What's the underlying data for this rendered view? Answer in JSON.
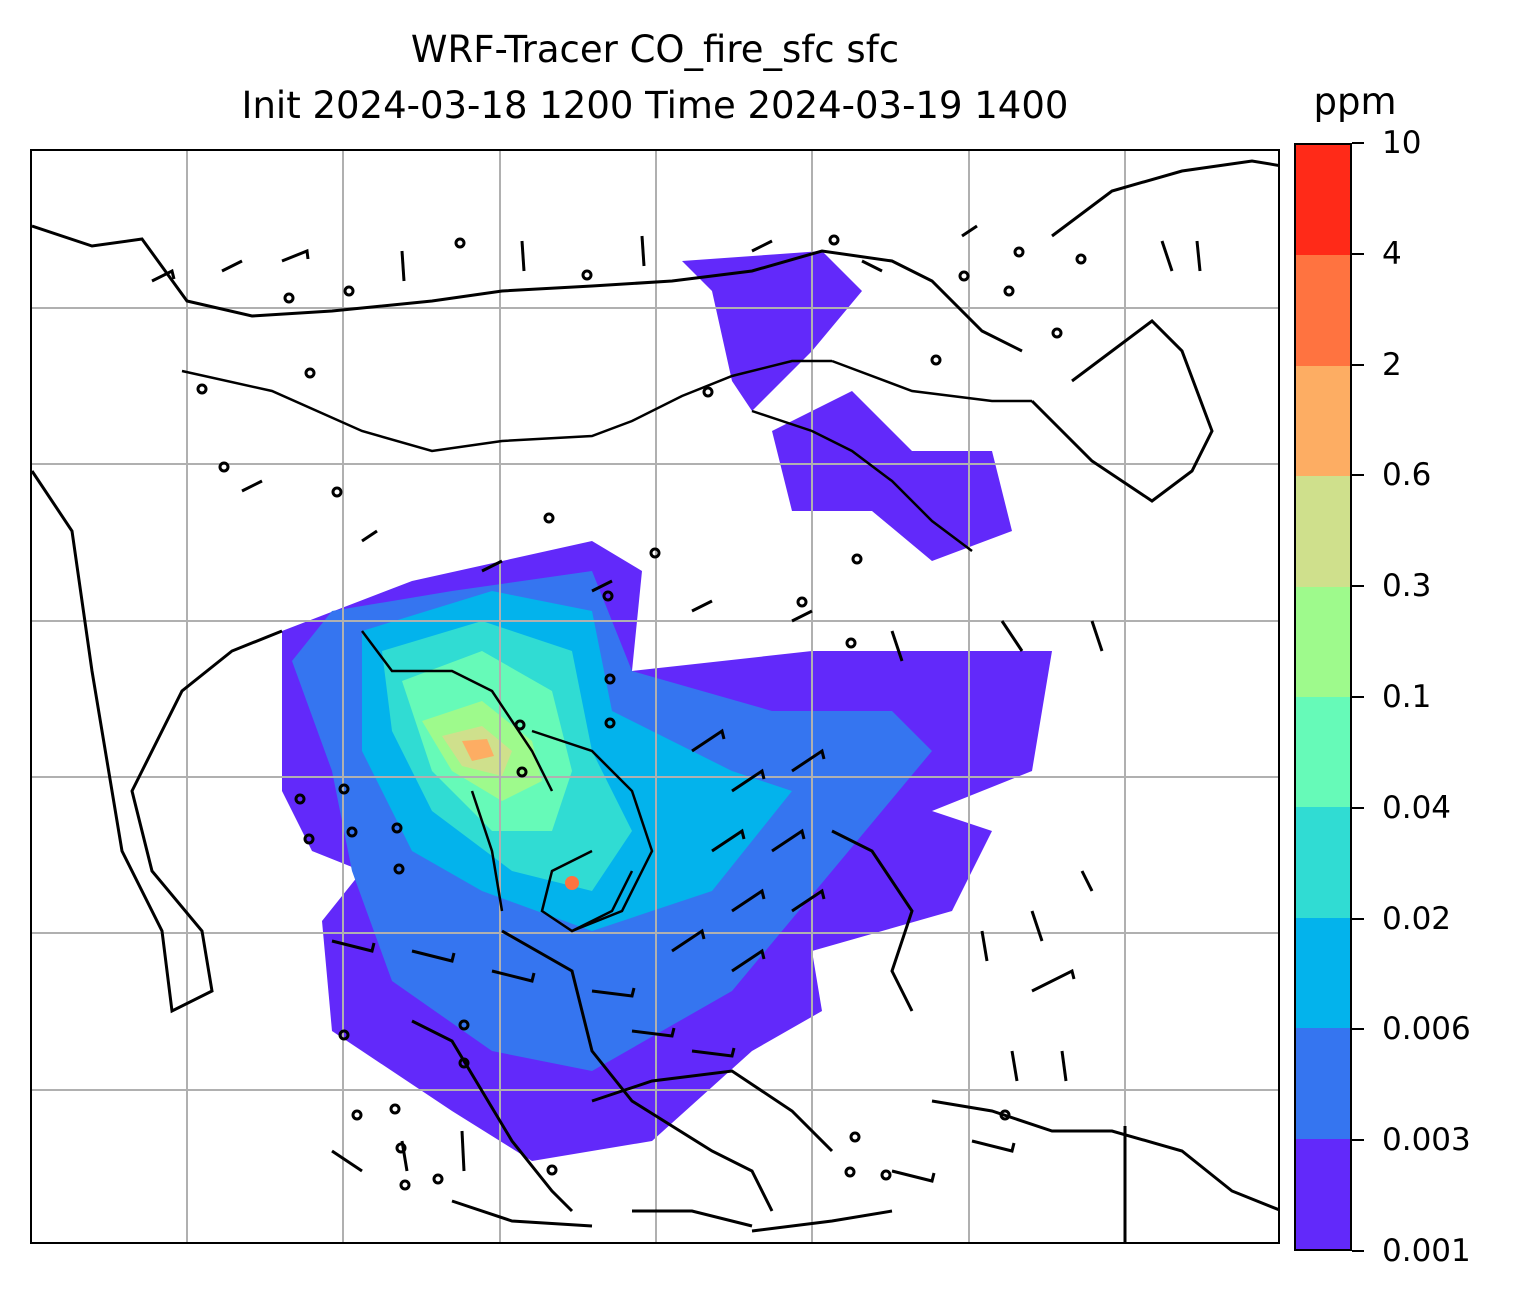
{
  "title": {
    "line1": "WRF-Tracer CO_fire_sfc sfc",
    "line2": "Init 2024-03-18 1200 Time 2024-03-19 1400"
  },
  "colorbar": {
    "unit": "ppm",
    "levels": [
      "0.001",
      "0.003",
      "0.006",
      "0.02",
      "0.04",
      "0.1",
      "0.3",
      "0.6",
      "2",
      "4",
      "10"
    ],
    "colors": [
      "#6229fa",
      "#3575f0",
      "#03b3ec",
      "#30dcd3",
      "#66fab8",
      "#9efa8c",
      "#cfe08c",
      "#fdad63",
      "#ff7340",
      "#ff2a18"
    ]
  },
  "map": {
    "field": "CO_fire_sfc",
    "level": "sfc",
    "gridlines": true,
    "overlay": "wind-barbs",
    "coastlines": true,
    "borders": true
  }
}
